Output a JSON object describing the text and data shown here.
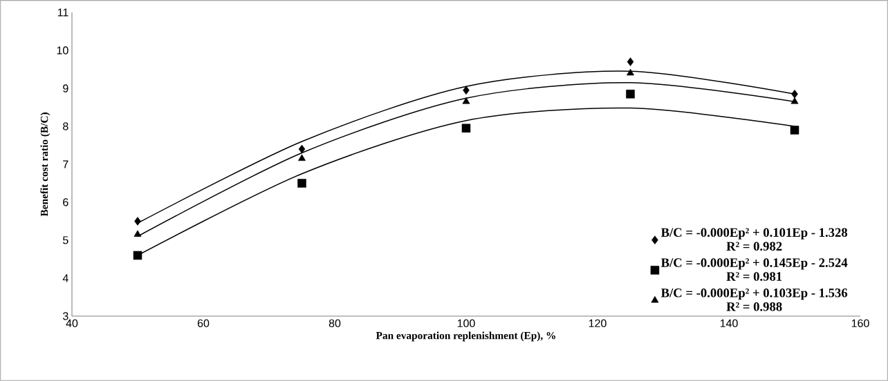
{
  "chart_data": {
    "type": "scatter",
    "xlabel": "Pan evaporation replenishment (Ep), %",
    "ylabel": "Benefit cost ratio (B/C)",
    "xlim": [
      40,
      160
    ],
    "xticks": [
      40,
      60,
      80,
      100,
      120,
      140,
      160
    ],
    "ylim": [
      3,
      11
    ],
    "yticks": [
      3,
      4,
      5,
      6,
      7,
      8,
      9,
      10,
      11
    ],
    "grid": false,
    "legend": "bottom right",
    "series": [
      {
        "name": "B/C = -0.000Ep² + 0.101Ep - 1.328",
        "color": "#000000",
        "marker": "diamond",
        "x": [
          50,
          75,
          100,
          125,
          150
        ],
        "values": [
          5.5,
          7.4,
          8.95,
          9.7,
          8.85
        ]
      },
      {
        "name": "B/C = -0.000Ep² + 0.145Ep - 2.524",
        "color": "#000000",
        "marker": "square",
        "x": [
          50,
          75,
          100,
          125,
          150
        ],
        "values": [
          4.6,
          6.5,
          7.95,
          8.85,
          7.9
        ]
      },
      {
        "name": "B/C = -0.000Ep² + 0.103Ep - 1.536",
        "color": "#000000",
        "marker": "triangle",
        "x": [
          50,
          75,
          100,
          125,
          150
        ],
        "values": [
          5.15,
          7.15,
          8.65,
          9.4,
          8.65
        ]
      },
      {
        "type": "line",
        "color": "#000000",
        "marker": "none",
        "x": [
          50,
          75,
          100,
          125,
          150
        ],
        "values": [
          5.45,
          7.6,
          9.05,
          9.45,
          8.85
        ]
      },
      {
        "type": "line",
        "color": "#000000",
        "marker": "none",
        "x": [
          50,
          75,
          100,
          125,
          150
        ],
        "values": [
          4.6,
          6.75,
          8.15,
          8.48,
          8.0
        ]
      },
      {
        "type": "line",
        "color": "#000000",
        "marker": "none",
        "x": [
          50,
          75,
          100,
          125,
          150
        ],
        "values": [
          5.1,
          7.3,
          8.74,
          9.15,
          8.65
        ]
      }
    ],
    "annotations": [
      "R² = 0.982",
      "R² = 0.981",
      "R² = 0.988"
    ]
  }
}
